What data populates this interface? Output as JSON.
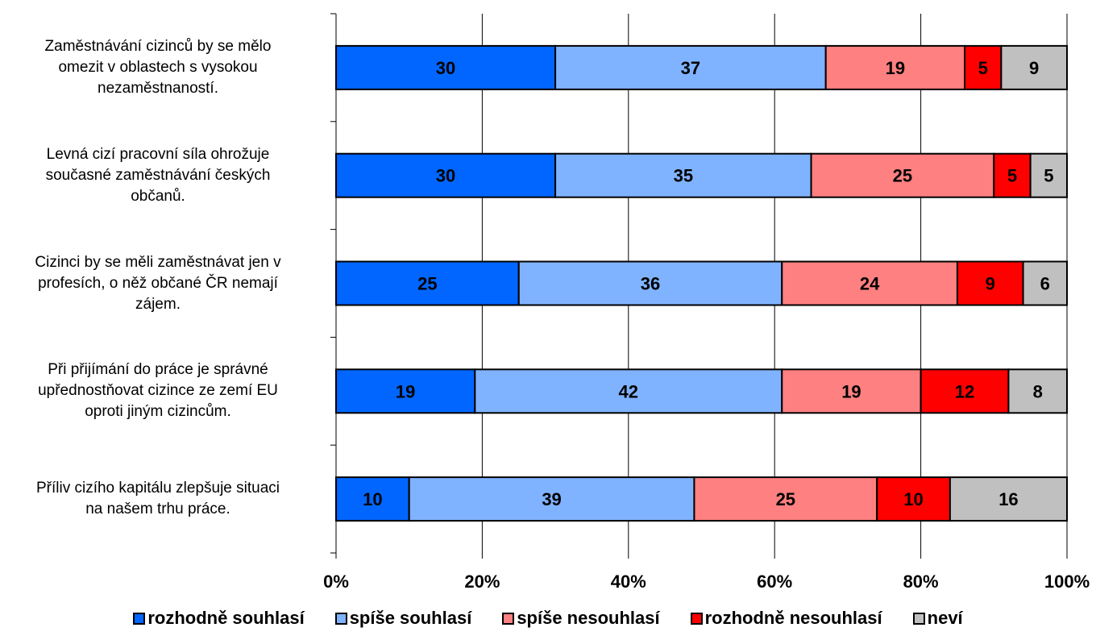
{
  "chart_data": {
    "type": "bar",
    "orientation": "horizontal",
    "stacked": "percent",
    "categories": [
      "Zaměstnávání cizinců by se mělo omezit v oblastech s vysokou nezaměstnaností.",
      "Levná cizí pracovní síla ohrožuje současné zaměstnávání českých občanů.",
      "Cizinci by se měli zaměstnávat jen v profesích, o něž občané ČR nemají zájem.",
      "Při přijímání do práce je správné upřednostňovat cizince ze zemí EU oproti jiným cizincům.",
      "Příliv cizího kapitálu zlepšuje situaci na našem trhu práce."
    ],
    "category_lines": [
      [
        "Zaměstnávání cizinců by se mělo",
        "omezit v oblastech s vysokou",
        "nezaměstnaností."
      ],
      [
        "Levná cizí pracovní síla ohrožuje",
        "současné zaměstnávání českých",
        "občanů."
      ],
      [
        "Cizinci by se měli zaměstnávat jen v",
        "profesích, o něž občané ČR nemají",
        "zájem."
      ],
      [
        "Při přijímání do práce je správné",
        "upřednostňovat cizince ze zemí EU",
        "oproti jiným cizincům."
      ],
      [
        "Příliv cizího kapitálu zlepšuje situaci",
        "na našem trhu práce."
      ]
    ],
    "series": [
      {
        "name": "rozhodně souhlasí",
        "color": "#0066ff",
        "values": [
          30,
          30,
          25,
          19,
          10
        ]
      },
      {
        "name": "spíše souhlasí",
        "color": "#80b3ff",
        "values": [
          37,
          35,
          36,
          42,
          39
        ]
      },
      {
        "name": "spíše nesouhlasí",
        "color": "#ff8080",
        "values": [
          19,
          25,
          24,
          19,
          25
        ]
      },
      {
        "name": "rozhodně nesouhlasí",
        "color": "#ff0000",
        "values": [
          5,
          5,
          9,
          12,
          10
        ]
      },
      {
        "name": "neví",
        "color": "#c0c0c0",
        "values": [
          9,
          5,
          6,
          8,
          16
        ]
      }
    ],
    "x_ticks": [
      "0%",
      "20%",
      "40%",
      "60%",
      "80%",
      "100%"
    ],
    "xlim": [
      0,
      100
    ],
    "grid": true,
    "legend_position": "bottom"
  }
}
